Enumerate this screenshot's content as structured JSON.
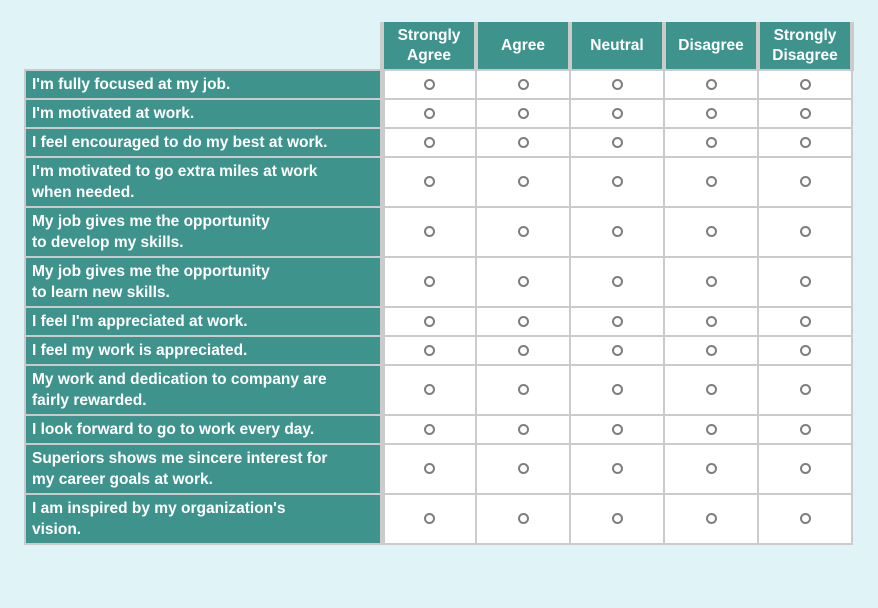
{
  "colors": {
    "page_bg": "#e0f4f7",
    "teal": "#3e938d",
    "border_gray": "#cbcbcb",
    "cell_bg": "#ffffff",
    "radio_ring": "#7e7e7e",
    "header_text": "#ffffff"
  },
  "matrix": {
    "columns": [
      {
        "id": "strongly-agree",
        "label": "Strongly Agree"
      },
      {
        "id": "agree",
        "label": "Agree"
      },
      {
        "id": "neutral",
        "label": "Neutral"
      },
      {
        "id": "disagree",
        "label": "Disagree"
      },
      {
        "id": "strongly-disagree",
        "label": "Strongly Disagree"
      }
    ],
    "rows": [
      {
        "label": "I'm fully focused at my job.",
        "selected": null
      },
      {
        "label": "I'm motivated at work.",
        "selected": null
      },
      {
        "label": "I feel encouraged to do my best at work.",
        "selected": null
      },
      {
        "label": "I'm motivated to go extra miles at work\nwhen needed.",
        "selected": null
      },
      {
        "label": "My job gives me the opportunity\nto develop my skills.",
        "selected": null
      },
      {
        "label": "My job gives me the opportunity\nto learn new skills.",
        "selected": null
      },
      {
        "label": "I feel I'm appreciated at work.",
        "selected": null
      },
      {
        "label": "I feel my work is appreciated.",
        "selected": null
      },
      {
        "label": "My work and dedication to company are\nfairly rewarded.",
        "selected": null
      },
      {
        "label": "I look forward to go to work every day.",
        "selected": null
      },
      {
        "label": "Superiors shows me sincere interest for\nmy career goals at work.",
        "selected": null
      },
      {
        "label": "I am inspired by my organization's\nvision.",
        "selected": null
      }
    ]
  }
}
